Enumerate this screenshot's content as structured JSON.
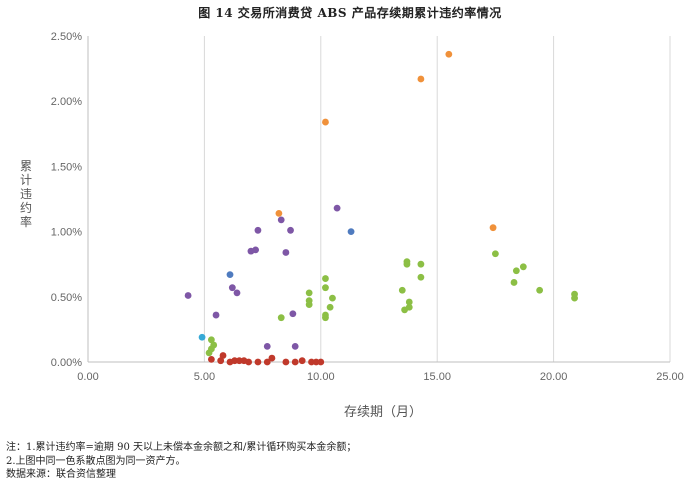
{
  "chart_data": {
    "type": "scatter",
    "title": "图 14   交易所消费贷 ABS 产品存续期累计违约率情况",
    "xlabel": "存续期（月）",
    "ylabel": "累计违约率",
    "xlim": [
      0,
      25
    ],
    "ylim": [
      0,
      0.025
    ],
    "xticks": [
      "0.00",
      "5.00",
      "10.00",
      "15.00",
      "20.00",
      "25.00"
    ],
    "yticks": [
      "0.00%",
      "0.50%",
      "1.00%",
      "1.50%",
      "2.00%",
      "2.50%"
    ],
    "grid": "vertical",
    "series": [
      {
        "color": "#f0913a",
        "points": [
          [
            8.2,
            0.0114
          ],
          [
            10.2,
            0.0184
          ],
          [
            14.3,
            0.0217
          ],
          [
            15.5,
            0.0236
          ],
          [
            17.4,
            0.0103
          ]
        ]
      },
      {
        "color": "#7e57a6",
        "points": [
          [
            4.3,
            0.0051
          ],
          [
            5.5,
            0.0036
          ],
          [
            6.2,
            0.0057
          ],
          [
            6.4,
            0.0053
          ],
          [
            7.0,
            0.0085
          ],
          [
            7.2,
            0.0086
          ],
          [
            7.3,
            0.0101
          ],
          [
            7.7,
            0.0012
          ],
          [
            8.3,
            0.0109
          ],
          [
            8.5,
            0.0084
          ],
          [
            8.7,
            0.0101
          ],
          [
            8.8,
            0.0037
          ],
          [
            8.9,
            0.0012
          ],
          [
            10.7,
            0.0118
          ]
        ]
      },
      {
        "color": "#4f7bbf",
        "points": [
          [
            6.1,
            0.0067
          ],
          [
            11.3,
            0.01
          ]
        ]
      },
      {
        "color": "#36a9d6",
        "points": [
          [
            4.9,
            0.0019
          ]
        ]
      },
      {
        "color": "#c0392b",
        "points": [
          [
            5.3,
            0.0002
          ],
          [
            5.7,
            0.0001
          ],
          [
            5.8,
            0.0005
          ],
          [
            6.1,
            0.0
          ],
          [
            6.3,
            0.0001
          ],
          [
            6.5,
            0.0001
          ],
          [
            6.7,
            0.0001
          ],
          [
            6.9,
            0.0
          ],
          [
            7.3,
            0.0
          ],
          [
            7.7,
            0.0
          ],
          [
            7.9,
            0.0003
          ],
          [
            8.5,
            0.0
          ],
          [
            8.9,
            0.0
          ],
          [
            9.2,
            0.0001
          ],
          [
            9.6,
            0.0
          ],
          [
            9.8,
            0.0
          ],
          [
            10.0,
            0.0
          ]
        ]
      },
      {
        "color": "#8cbf45",
        "points": [
          [
            5.2,
            0.0007
          ],
          [
            5.3,
            0.001
          ],
          [
            5.3,
            0.0017
          ],
          [
            5.4,
            0.0013
          ],
          [
            8.3,
            0.0034
          ],
          [
            9.5,
            0.0047
          ],
          [
            9.5,
            0.0044
          ],
          [
            9.5,
            0.0053
          ],
          [
            10.2,
            0.0064
          ],
          [
            10.2,
            0.0057
          ],
          [
            10.2,
            0.0036
          ],
          [
            10.2,
            0.0034
          ],
          [
            10.4,
            0.0042
          ],
          [
            10.5,
            0.0049
          ],
          [
            13.5,
            0.0055
          ],
          [
            13.6,
            0.004
          ],
          [
            13.7,
            0.0077
          ],
          [
            13.7,
            0.0075
          ],
          [
            13.8,
            0.0046
          ],
          [
            13.8,
            0.0042
          ],
          [
            14.3,
            0.0075
          ],
          [
            14.3,
            0.0065
          ],
          [
            17.5,
            0.0083
          ],
          [
            18.3,
            0.0061
          ],
          [
            18.4,
            0.007
          ],
          [
            18.7,
            0.0073
          ],
          [
            19.4,
            0.0055
          ],
          [
            20.9,
            0.0052
          ],
          [
            20.9,
            0.0049
          ]
        ]
      }
    ]
  },
  "notes": {
    "line1": "注：1.累计违约率=逾期 90 天以上未偿本金余额之和/累计循环购买本金余额；",
    "line2": "2.上图中同一色系散点图为同一资产方。",
    "line3": "数据来源：联合资信整理"
  }
}
